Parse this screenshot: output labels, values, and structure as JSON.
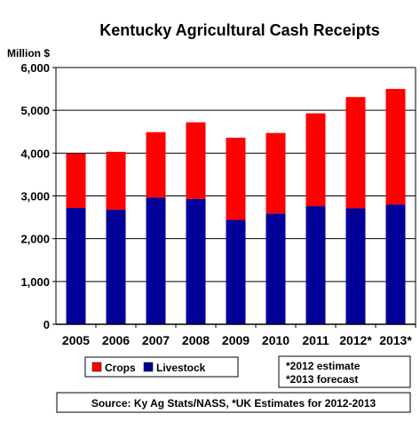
{
  "chart_data": {
    "type": "bar",
    "stacked": true,
    "title": "Kentucky Agricultural Cash Receipts",
    "ylabel": "Million $",
    "xlabel": "",
    "categories": [
      "2005",
      "2006",
      "2007",
      "2008",
      "2009",
      "2010",
      "2011",
      "2012*",
      "2013*"
    ],
    "series": [
      {
        "name": "Livestock",
        "color": "#000099",
        "values": [
          2720,
          2680,
          2960,
          2930,
          2440,
          2590,
          2760,
          2710,
          2800
        ]
      },
      {
        "name": "Crops",
        "color": "#ff0000",
        "values": [
          1270,
          1350,
          1530,
          1790,
          1920,
          1880,
          2170,
          2600,
          2700
        ]
      }
    ],
    "ylim": [
      0,
      6000
    ],
    "yticks": [
      "0",
      "1,000",
      "2,000",
      "3,000",
      "4,000",
      "5,000",
      "6,000"
    ],
    "grid": true,
    "legend": {
      "placement": "bottom-left",
      "entries": [
        "Crops",
        "Livestock"
      ]
    },
    "notes": [
      "*2012 estimate",
      "*2013 forecast"
    ],
    "source": "Source:  Ky Ag Stats/NASS, *UK Estimates for 2012-2013"
  }
}
